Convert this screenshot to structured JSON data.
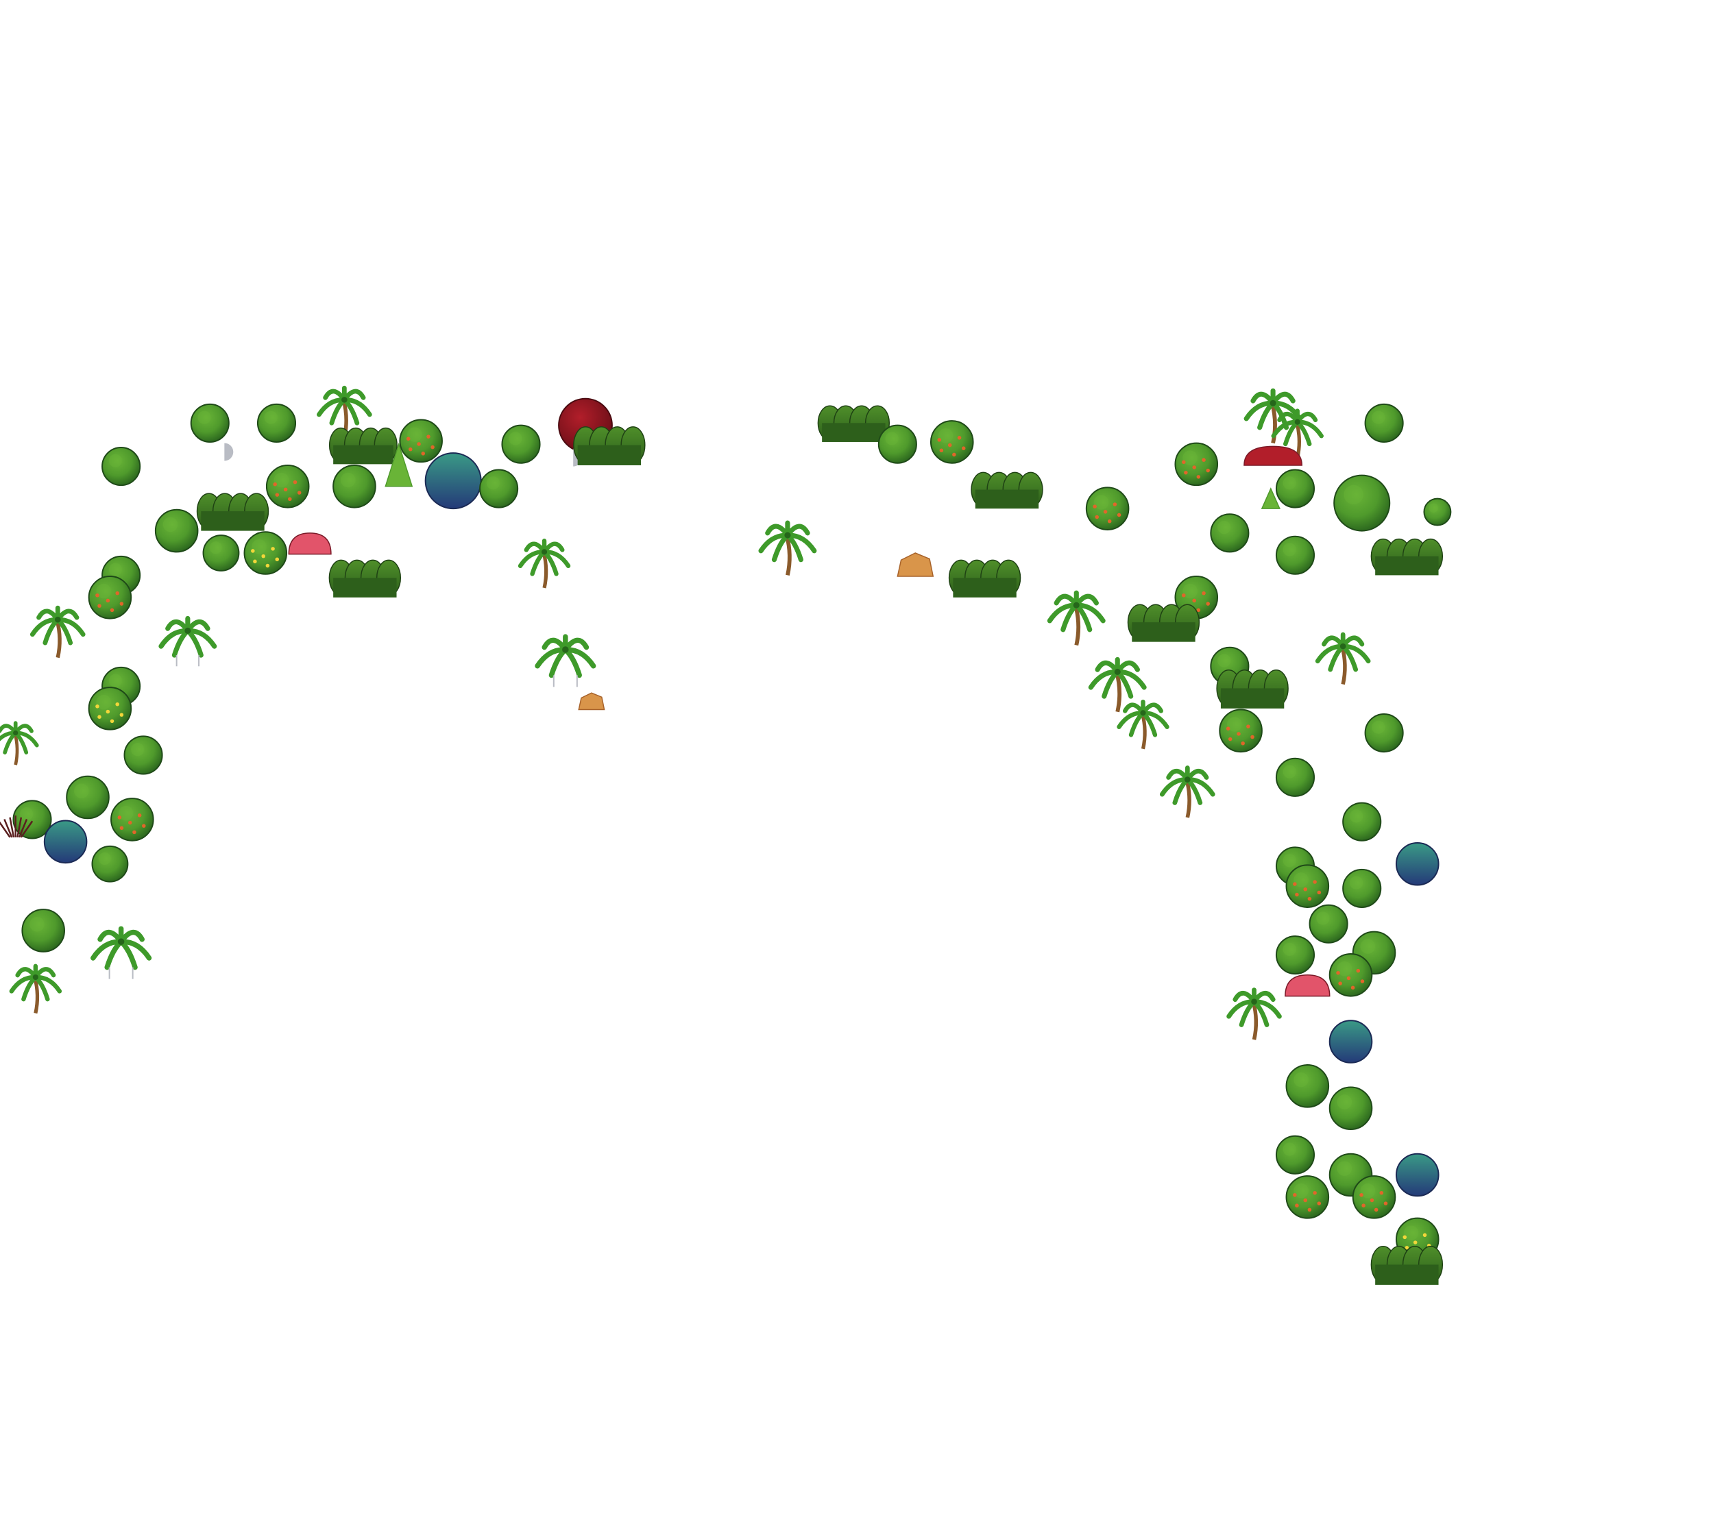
{
  "scene": {
    "background": "#ffffff",
    "palette": {
      "tree_light": "#69b437",
      "tree_mid": "#4f9a2c",
      "tree_dark": "#2e6b1f",
      "tree_outline": "#1f4a18",
      "bush_light": "#4f8f2a",
      "bush_dark": "#2d5f1b",
      "palm_leaf": "#3e9a2a",
      "palm_leaf_dark": "#25661a",
      "palm_trunk": "#8a5a2b",
      "teal_tree_top": "#3a9a86",
      "teal_tree_bottom": "#243a78",
      "red_tree": "#b21e2a",
      "red_tree_dark": "#6e0f18",
      "pink_flower_bush": "#e2546a",
      "rock": "#d9954a",
      "rock_dark": "#a8632b",
      "dead_bush": "#5a1f1f",
      "fruit_orange": "#e0662a",
      "fruit_yellow": "#f2d63a",
      "stone_gray": "#b9bcc4"
    }
  }
}
